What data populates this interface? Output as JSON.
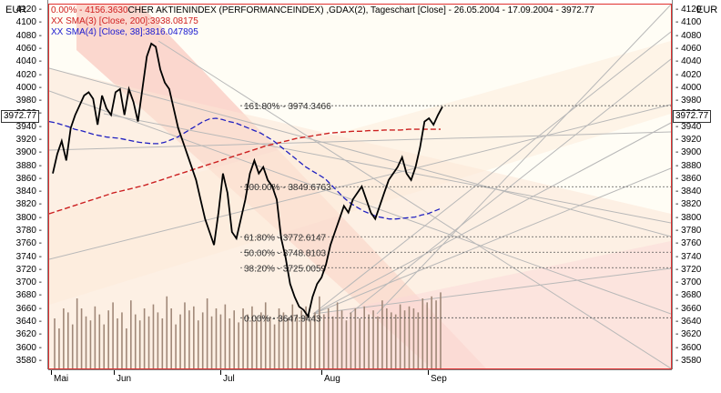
{
  "chart_data": {
    "type": "line",
    "title": "CHER AKTIENINDEX (PERFORMANCEINDEX) ,GDAX(2), Tageschart [Close] - 26.05.2004 - 17.09.2004 - 3972.77",
    "currency_left": "EUR",
    "currency_right": "EUR",
    "ylim": [
      3570,
      4130
    ],
    "y_ticks": [
      4120,
      4100,
      4080,
      4060,
      4040,
      4020,
      4000,
      3980,
      3960,
      3940,
      3920,
      3900,
      3880,
      3860,
      3840,
      3820,
      3800,
      3780,
      3760,
      3740,
      3720,
      3700,
      3680,
      3660,
      3640,
      3620,
      3600,
      3580
    ],
    "x_ticks": [
      "Mai",
      "Jun",
      "Jul",
      "Aug",
      "Sep"
    ],
    "last_price": "3972.77",
    "legend": {
      "high": "0.00% - 4156.3630",
      "sma200": "XX SMA(3) [Close, 200]:3938.08175",
      "sma38": "XX SMA(4) [Close, 38]:3816.047895"
    },
    "fib_levels": [
      {
        "label": "161.80% - 3974.3466",
        "value": 3974.35
      },
      {
        "label": "100.00% - 3849.6763",
        "value": 3849.68
      },
      {
        "label": "61.80% - 3772.6147",
        "value": 3772.61
      },
      {
        "label": "50.00% - 3748.8103",
        "value": 3748.81
      },
      {
        "label": "38.20% - 3725.0059",
        "value": 3725.01
      },
      {
        "label": "0.00% - 3647.9443",
        "value": 3647.94
      }
    ],
    "series": [
      {
        "values": [
          3870,
          3900,
          3920,
          3890,
          3940,
          3960,
          3975,
          3990,
          3995,
          3985,
          3945,
          3990,
          3970,
          3960,
          3995,
          4000,
          3960,
          4000,
          3980,
          3950,
          4000,
          4050,
          4070,
          4065,
          4030,
          4010,
          4000,
          3970,
          3940,
          3920,
          3900,
          3880,
          3860,
          3830,
          3800,
          3780,
          3760,
          3810,
          3870,
          3840,
          3780,
          3770,
          3800,
          3830,
          3870,
          3890,
          3870,
          3880,
          3860,
          3850,
          3830,
          3770,
          3740,
          3700,
          3680,
          3665,
          3660,
          3650,
          3680,
          3700,
          3710,
          3730,
          3760,
          3780,
          3800,
          3820,
          3810,
          3830,
          3840,
          3850,
          3830,
          3810,
          3800,
          3820,
          3840,
          3860,
          3870,
          3880,
          3895,
          3870,
          3860,
          3880,
          3910,
          3950,
          3955,
          3945,
          3960,
          3972.77
        ]
      },
      {
        "values": [
          3950,
          3948,
          3945,
          3942,
          3938,
          3936,
          3933,
          3930,
          3928,
          3926,
          3925,
          3924,
          3922,
          3920,
          3918,
          3917,
          3916,
          3916,
          3918,
          3922,
          3926,
          3932,
          3938,
          3944,
          3950,
          3954,
          3955,
          3953,
          3950,
          3948,
          3944,
          3940,
          3936,
          3932,
          3926,
          3920,
          3912,
          3904,
          3896,
          3888,
          3880,
          3874,
          3868,
          3862,
          3852,
          3842,
          3832,
          3824,
          3818,
          3812,
          3808,
          3804,
          3802,
          3800,
          3800,
          3801,
          3802,
          3803,
          3806,
          3808,
          3812,
          3816
        ]
      },
      {
        "values": [
          3808,
          3812,
          3816,
          3820,
          3824,
          3828,
          3832,
          3836,
          3840,
          3843,
          3846,
          3849,
          3852,
          3856,
          3860,
          3864,
          3868,
          3872,
          3876,
          3880,
          3884,
          3888,
          3892,
          3896,
          3900,
          3904,
          3908,
          3912,
          3915,
          3918,
          3921,
          3924,
          3926,
          3928,
          3930,
          3932,
          3933,
          3934,
          3935,
          3935,
          3936,
          3936,
          3937,
          3937,
          3937,
          3938,
          3938,
          3938,
          3938,
          3938
        ]
      }
    ],
    "volume": [
      0.25,
      0.2,
      0.3,
      0.28,
      0.22,
      0.35,
      0.3,
      0.26,
      0.24,
      0.31,
      0.27,
      0.22,
      0.29,
      0.33,
      0.25,
      0.28,
      0.2,
      0.34,
      0.27,
      0.24,
      0.3,
      0.26,
      0.32,
      0.28,
      0.25,
      0.36,
      0.3,
      0.22,
      0.27,
      0.33,
      0.29,
      0.31,
      0.24,
      0.28,
      0.35,
      0.26,
      0.3,
      0.27,
      0.32,
      0.25,
      0.29,
      0.23,
      0.3,
      0.27,
      0.31,
      0.24,
      0.28,
      0.33,
      0.26,
      0.22,
      0.3,
      0.28,
      0.25,
      0.32,
      0.27,
      0.29,
      0.31,
      0.24,
      0.28,
      0.36,
      0.27,
      0.3,
      0.26,
      0.33,
      0.29,
      0.24,
      0.28,
      0.3,
      0.25,
      0.31,
      0.27,
      0.29,
      0.26,
      0.34,
      0.3,
      0.28,
      0.27,
      0.32,
      0.29,
      0.31,
      0.3,
      0.28,
      0.35,
      0.33,
      0.36,
      0.34,
      0.38
    ]
  }
}
